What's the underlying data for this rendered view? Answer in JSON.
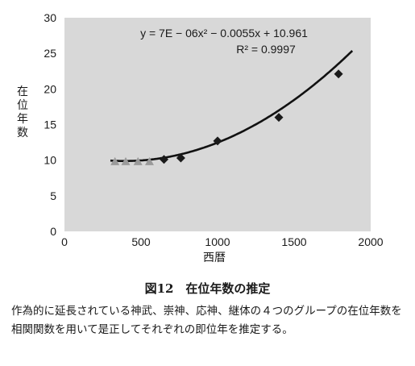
{
  "chart_data": {
    "type": "scatter",
    "xlabel": "西暦",
    "ylabel": "在位年数",
    "xlim": [
      0,
      2000
    ],
    "ylim": [
      0,
      30
    ],
    "x_ticks": [
      "0",
      "500",
      "1000",
      "1500",
      "2000"
    ],
    "y_ticks": [
      "0",
      "5",
      "10",
      "15",
      "20",
      "25",
      "30"
    ],
    "grid": false,
    "background": "#d8d8d8",
    "series": [
      {
        "marker": "diamond",
        "color": "#1a1a1a",
        "points": [
          [
            650,
            10.1
          ],
          [
            760,
            10.3
          ],
          [
            1000,
            12.7
          ],
          [
            1400,
            16.0
          ],
          [
            1790,
            22.1
          ]
        ]
      },
      {
        "marker": "triangle",
        "color": "#9a9a9a",
        "points": [
          [
            330,
            9.8
          ],
          [
            400,
            9.8
          ],
          [
            480,
            9.8
          ],
          [
            555,
            9.8
          ]
        ]
      }
    ],
    "trendline": {
      "equation": "y = 7E − 06x² − 0.0055x + 10.961",
      "r2": "R² = 0.9997",
      "coefficients": {
        "a": 7e-06,
        "b": -0.0055,
        "c": 10.961
      },
      "x_range": [
        300,
        1880
      ]
    }
  },
  "caption": {
    "title": "図12　在位年数の推定",
    "text": "作為的に延長されている神武、崇神、応神、継体の４つのグループの在位年数を相関関数を用いて是正してそれぞれの即位年を推定する。"
  }
}
